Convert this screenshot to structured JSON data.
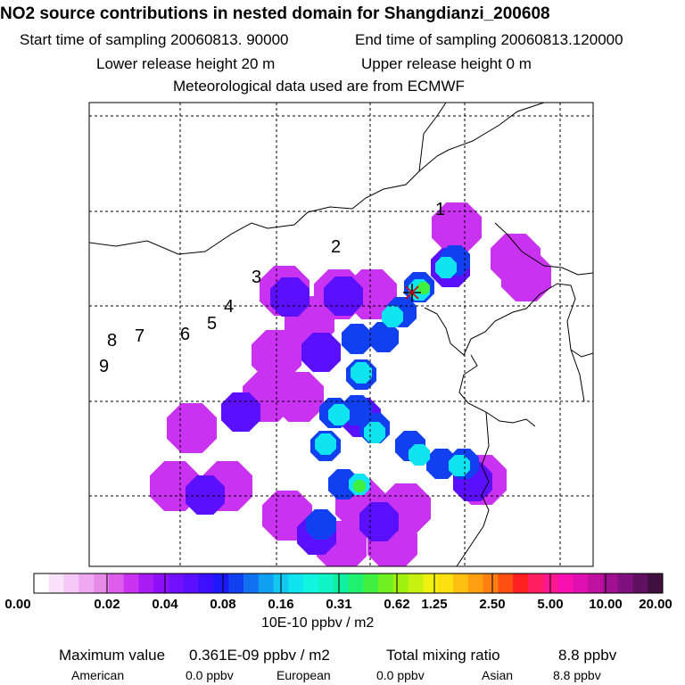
{
  "header": {
    "title": "NO2 source contributions in nested domain for Shangdianzi_200608",
    "start_sampling": "Start time of sampling 20060813. 90000",
    "end_sampling": "End time of sampling 20060813.120000",
    "lower_release": "Lower release height   20 m",
    "upper_release": "Upper release height    0 m",
    "met_data": "Meteorological data used are from ECMWF"
  },
  "chart_data": {
    "type": "heatmap",
    "title": "NO2 source contributions in nested domain for Shangdianzi_200608",
    "colorbar": {
      "ticks": [
        "0.00",
        "0.02",
        "0.04",
        "0.08",
        "0.16",
        "0.31",
        "0.62",
        "1.25",
        "2.50",
        "5.00",
        "10.00",
        "20.00"
      ],
      "unit": "10E-10 ppbv / m2",
      "colors": [
        "#ffffff",
        "#fbe2fb",
        "#f6c8f6",
        "#f0a8f0",
        "#e88ae8",
        "#dc5cec",
        "#c832f0",
        "#a81cf4",
        "#8c10f8",
        "#7210fb",
        "#5a10fc",
        "#3c10fc",
        "#1e18f8",
        "#1040f0",
        "#1070f0",
        "#10a0f0",
        "#10c8f0",
        "#10e4f0",
        "#10f4e0",
        "#10f4c8",
        "#10f0a0",
        "#20f070",
        "#40f040",
        "#70f020",
        "#a0f010",
        "#c8f010",
        "#eef010",
        "#fee010",
        "#fec010",
        "#fea010",
        "#fe8010",
        "#fe5010",
        "#fe2020",
        "#fe2060",
        "#fe1890",
        "#f810b0",
        "#e010b0",
        "#c010a0",
        "#a01090",
        "#801080",
        "#601060",
        "#401040"
      ]
    },
    "receptor_marker": "star-marker",
    "trajectory_labels": [
      "1",
      "2",
      "3",
      "4",
      "5",
      "6",
      "7",
      "8",
      "9"
    ],
    "plumes": [
      {
        "level": 0.03,
        "cells": [
          [
            319,
            326
          ],
          [
            380,
            330
          ],
          [
            417,
            330
          ],
          [
            347,
            360
          ],
          [
            310,
            398
          ],
          [
            300,
            445
          ],
          [
            335,
            445
          ],
          [
            215,
            480
          ],
          [
            196,
            545
          ],
          [
            255,
            545
          ],
          [
            322,
            578
          ],
          [
            383,
            612
          ],
          [
            440,
            610
          ],
          [
            404,
            565
          ],
          [
            455,
            570
          ],
          [
            540,
            538
          ],
          [
            590,
            310
          ],
          [
            578,
            290
          ],
          [
            512,
            255
          ]
        ]
      },
      {
        "level": 0.06,
        "cells": [
          [
            325,
            333
          ],
          [
            385,
            332
          ],
          [
            360,
            395
          ],
          [
            405,
            468
          ],
          [
            270,
            462
          ],
          [
            230,
            555
          ],
          [
            355,
            600
          ],
          [
            425,
            585
          ],
          [
            530,
            540
          ],
          [
            505,
            300
          ]
        ]
      },
      {
        "level": 0.1,
        "cells": [
          [
            470,
            322
          ],
          [
            510,
            292
          ],
          [
            450,
            350
          ],
          [
            430,
            378
          ],
          [
            405,
            420
          ],
          [
            400,
            380
          ],
          [
            400,
            460
          ],
          [
            375,
            463
          ],
          [
            420,
            480
          ],
          [
            460,
            500
          ],
          [
            495,
            520
          ],
          [
            365,
            500
          ],
          [
            385,
            543
          ],
          [
            360,
            588
          ],
          [
            520,
            520
          ]
        ]
      },
      {
        "level": 0.2,
        "cells": [
          [
            470,
            325
          ],
          [
            500,
            300
          ],
          [
            405,
            418
          ],
          [
            380,
            465
          ],
          [
            420,
            485
          ],
          [
            365,
            498
          ],
          [
            470,
            510
          ],
          [
            403,
            543
          ],
          [
            515,
            522
          ],
          [
            440,
            355
          ]
        ]
      },
      {
        "level": 0.5,
        "cells": [
          [
            403,
            545
          ],
          [
            475,
            323
          ]
        ]
      }
    ]
  },
  "footer": {
    "max_label": "Maximum value",
    "max_value": "0.361E-09 ppbv / m2",
    "total_label": "Total mixing ratio",
    "total_value": "8.8 ppbv",
    "american_label": "American",
    "american_value": "0.0 ppbv",
    "european_label": "European",
    "european_value": "0.0 ppbv",
    "asian_label": "Asian",
    "asian_value": "8.8 ppbv"
  }
}
